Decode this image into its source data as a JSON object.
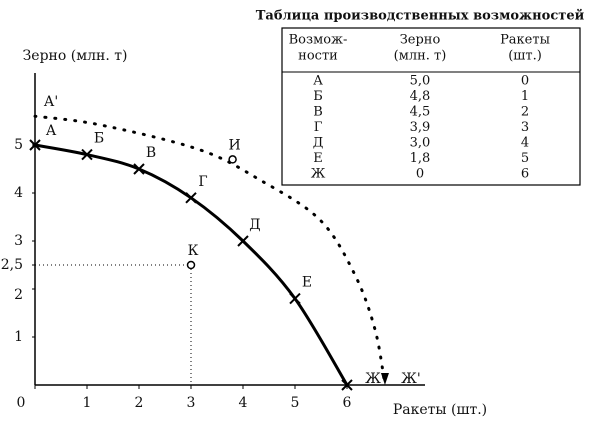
{
  "chart_data": {
    "type": "line",
    "xlabel": "Ракеты (шт.)",
    "ylabel": "Зерно (млн. т)",
    "xlim": [
      0,
      7.5
    ],
    "ylim": [
      0,
      6.5
    ],
    "xticks": [
      0,
      1,
      2,
      3,
      4,
      5,
      6
    ],
    "yticks": [
      1,
      2,
      {
        "value": 2.5,
        "label": "2,5"
      },
      3,
      4,
      5
    ],
    "series": [
      {
        "style": "solid",
        "color": "#000000",
        "x": [
          0,
          1,
          2,
          3,
          4,
          5,
          6
        ],
        "values": [
          5.0,
          4.8,
          4.5,
          3.9,
          3.0,
          1.8,
          0
        ],
        "point_labels": [
          "А",
          "Б",
          "В",
          "Г",
          "Д",
          "Е",
          "Ж"
        ]
      },
      {
        "style": "dotted",
        "color": "#000000",
        "x": [
          0,
          1.25,
          3.17,
          4.33,
          5.48,
          6.15,
          6.54,
          6.73
        ],
        "values": [
          5.6,
          5.42,
          4.9,
          4.27,
          3.44,
          2.3,
          1.15,
          0
        ],
        "point_labels": [
          "А'",
          null,
          null,
          null,
          null,
          null,
          null,
          "Ж'"
        ]
      }
    ],
    "points": [
      {
        "label": "И",
        "x": 3.8,
        "y": 4.7,
        "guides": false
      },
      {
        "label": "К",
        "x": 3,
        "y": 2.5,
        "guides": true
      }
    ]
  },
  "table": {
    "title": "Таблица производственных возможностей",
    "header": [
      [
        "Возмож-",
        "ности"
      ],
      [
        "Зерно",
        "(млн. т)"
      ],
      [
        "Ракеты",
        "(шт.)"
      ]
    ],
    "rows": [
      [
        "А",
        "5,0",
        "0"
      ],
      [
        "Б",
        "4,8",
        "1"
      ],
      [
        "В",
        "4,5",
        "2"
      ],
      [
        "Г",
        "3,9",
        "3"
      ],
      [
        "Д",
        "3,0",
        "4"
      ],
      [
        "Е",
        "1,8",
        "5"
      ],
      [
        "Ж",
        "0",
        "6"
      ]
    ]
  }
}
